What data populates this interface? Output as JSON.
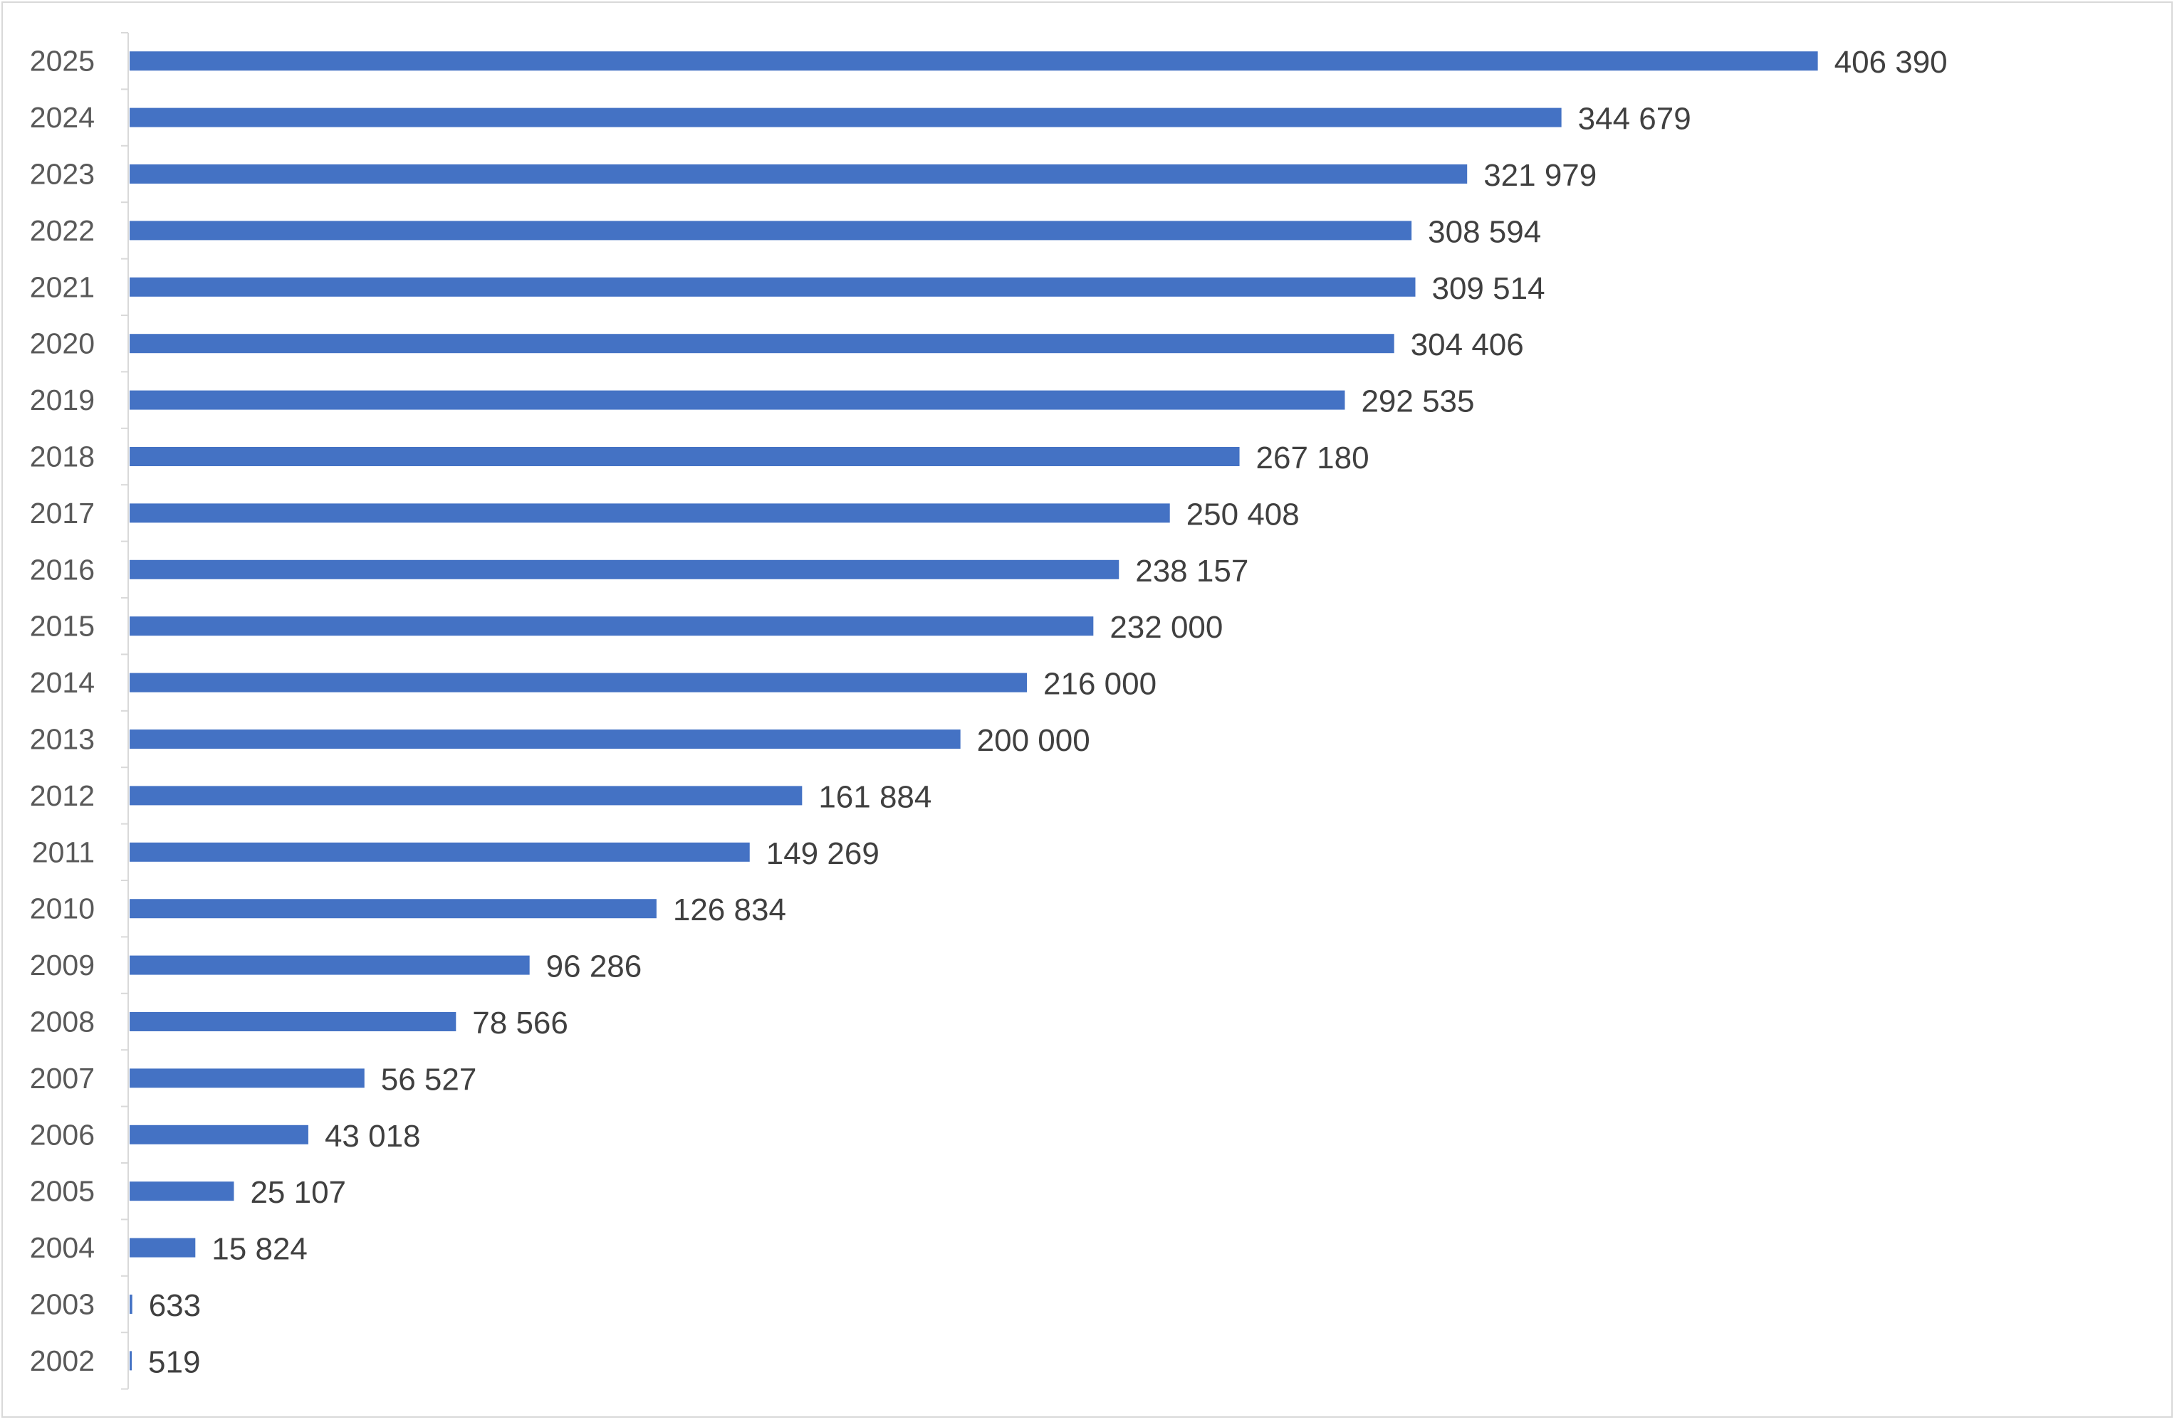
{
  "chart_data": {
    "type": "bar",
    "orientation": "horizontal",
    "title": "",
    "xlabel": "",
    "ylabel": "",
    "categories": [
      "2025",
      "2024",
      "2023",
      "2022",
      "2021",
      "2020",
      "2019",
      "2018",
      "2017",
      "2016",
      "2015",
      "2014",
      "2013",
      "2012",
      "2011",
      "2010",
      "2009",
      "2008",
      "2007",
      "2006",
      "2005",
      "2004",
      "2003",
      "2002"
    ],
    "values": [
      406390,
      344679,
      321979,
      308594,
      309514,
      304406,
      292535,
      267180,
      250408,
      238157,
      232000,
      216000,
      200000,
      161884,
      149269,
      126834,
      96286,
      78566,
      56527,
      43018,
      25107,
      15824,
      633,
      519
    ],
    "value_labels": [
      "406 390",
      "344 679",
      "321 979",
      "308 594",
      "309 514",
      "304 406",
      "292 535",
      "267 180",
      "250 408",
      "238 157",
      "232 000",
      "216 000",
      "200 000",
      "161 884",
      "149 269",
      "126 834",
      "96 286",
      "78 566",
      "56 527",
      "43 018",
      "25 107",
      "15 824",
      "633",
      "519"
    ],
    "xlim": [
      0,
      480000
    ],
    "grid": false,
    "legend": "none",
    "bar_color": "#4472c4",
    "axis_color": "#d9d9d9",
    "category_label_color": "#595959",
    "value_label_color": "#404040"
  }
}
